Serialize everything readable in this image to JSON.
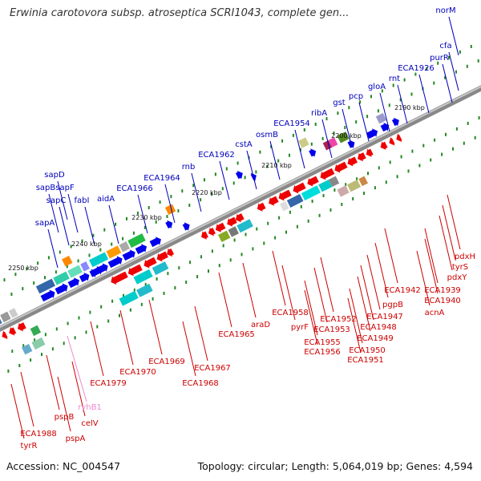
{
  "title": "Erwinia carotovora subsp. atroseptica SCRI1043, complete gen...",
  "footer": {
    "accession": "Accession: NC_004547",
    "summary": "Topology: circular; Length: 5,064,019 bp; Genes: 4,594"
  },
  "colors": {
    "forward_label": "#0000bb",
    "reverse_label": "#cc0000",
    "rna_label": "#ee88cc",
    "forward_arrow": "#0000ee",
    "reverse_arrow": "#ee0000",
    "backbone": "#888888",
    "tick": "#228822"
  },
  "ruler": [
    {
      "label": "2190 kbp"
    },
    {
      "label": "2200 kbp"
    },
    {
      "label": "2210 kbp"
    },
    {
      "label": "2220 kbp"
    },
    {
      "label": "2230 kbp"
    },
    {
      "label": "2240 kbp"
    },
    {
      "label": "2250 kbp"
    }
  ],
  "forward_genes": [
    {
      "name": "sapA"
    },
    {
      "name": "sapB"
    },
    {
      "name": "sapC"
    },
    {
      "name": "sapD"
    },
    {
      "name": "sapF"
    },
    {
      "name": "fabI"
    },
    {
      "name": "aidA"
    },
    {
      "name": "ECA1966"
    },
    {
      "name": "ECA1964"
    },
    {
      "name": "rnb"
    },
    {
      "name": "ECA1962"
    },
    {
      "name": "cstA"
    },
    {
      "name": "osmB"
    },
    {
      "name": "ECA1954"
    },
    {
      "name": "ribA"
    },
    {
      "name": "gst"
    },
    {
      "name": "pcp"
    },
    {
      "name": "gloA"
    },
    {
      "name": "rnt"
    },
    {
      "name": "ECA1926"
    },
    {
      "name": "purR"
    },
    {
      "name": "cfa"
    },
    {
      "name": "norM"
    }
  ],
  "reverse_genes": [
    {
      "name": "ECA1988"
    },
    {
      "name": "tyrR"
    },
    {
      "name": "pspB"
    },
    {
      "name": "pspA"
    },
    {
      "name": "celV"
    },
    {
      "name": "ECA1979"
    },
    {
      "name": "ECA1970"
    },
    {
      "name": "ECA1969"
    },
    {
      "name": "ECA1968"
    },
    {
      "name": "ECA1967"
    },
    {
      "name": "ECA1965"
    },
    {
      "name": "araD"
    },
    {
      "name": "ECA1958"
    },
    {
      "name": "pyrF"
    },
    {
      "name": "ECA1955"
    },
    {
      "name": "ECA1956"
    },
    {
      "name": "ECA1953"
    },
    {
      "name": "ECA1952"
    },
    {
      "name": "ECA1950"
    },
    {
      "name": "ECA1951"
    },
    {
      "name": "ECA1949"
    },
    {
      "name": "ECA1948"
    },
    {
      "name": "ECA1947"
    },
    {
      "name": "pgpB"
    },
    {
      "name": "ECA1942"
    },
    {
      "name": "ECA1940"
    },
    {
      "name": "acnA"
    },
    {
      "name": "ECA1939"
    },
    {
      "name": "pdxY"
    },
    {
      "name": "tyrS"
    },
    {
      "name": "pdxH"
    }
  ],
  "rna_genes": [
    {
      "name": "ryhB1"
    }
  ]
}
